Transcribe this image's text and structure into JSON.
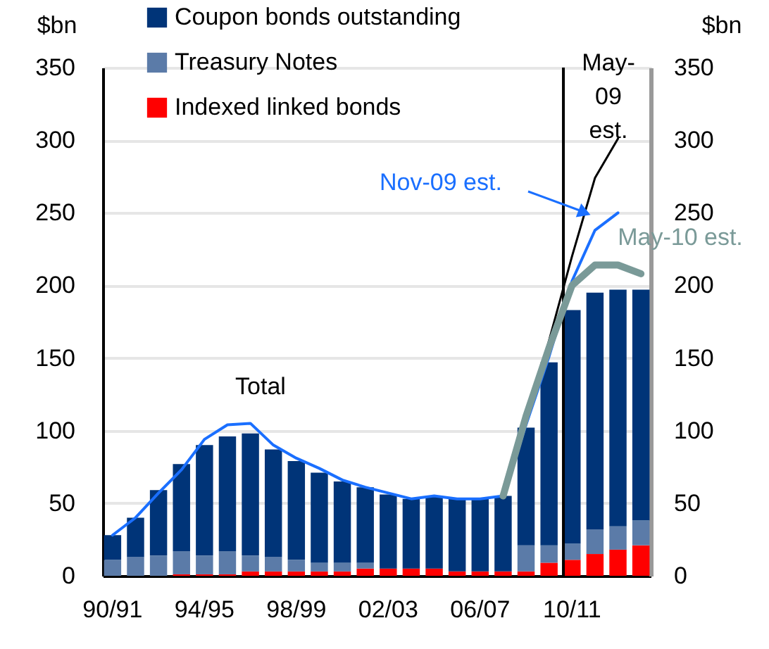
{
  "chart_data": {
    "type": "bar",
    "stacked": true,
    "categories": [
      "90/91",
      null,
      null,
      null,
      "94/95",
      null,
      null,
      null,
      "98/99",
      null,
      null,
      null,
      "02/03",
      null,
      null,
      null,
      "06/07",
      null,
      null,
      null,
      "10/11",
      null,
      null,
      null
    ],
    "series": [
      {
        "name": "Indexed linked bonds",
        "color": "#ff0000",
        "values": [
          0,
          0,
          0,
          1,
          1,
          1,
          3,
          3,
          3,
          3,
          3,
          5,
          5,
          5,
          5,
          3,
          3,
          3,
          3,
          9,
          11,
          15,
          18,
          21
        ]
      },
      {
        "name": "Treasury Notes",
        "color": "#5b7ba8",
        "values": [
          11,
          13,
          14,
          16,
          13,
          16,
          11,
          10,
          8,
          6,
          6,
          4,
          0,
          0,
          0,
          0,
          0,
          0,
          18,
          12,
          11,
          17,
          16,
          17
        ]
      },
      {
        "name": "Coupon bonds outstanding",
        "color": "#003478",
        "values": [
          17,
          27,
          45,
          60,
          76,
          79,
          84,
          74,
          68,
          62,
          56,
          52,
          51,
          48,
          50,
          50,
          50,
          52,
          81,
          126,
          161,
          163,
          163,
          159
        ]
      },
      {
        "name": "Nov-09 est.",
        "type": "line",
        "color": "#1a6fff",
        "values": [
          28,
          40,
          57,
          73,
          94,
          104,
          105,
          90,
          81,
          74,
          66,
          61,
          57,
          53,
          55,
          53,
          53,
          55,
          104,
          151,
          203,
          238,
          250,
          null
        ]
      },
      {
        "name": "May-09 est.",
        "type": "line",
        "color": "#000000",
        "values": [
          null,
          null,
          null,
          null,
          null,
          null,
          null,
          null,
          null,
          null,
          null,
          null,
          null,
          null,
          null,
          null,
          null,
          55,
          null,
          162,
          220,
          274,
          301,
          null
        ]
      },
      {
        "name": "May-10 est.",
        "type": "line",
        "color": "#7a9a98",
        "values": [
          null,
          null,
          null,
          null,
          null,
          null,
          null,
          null,
          null,
          null,
          null,
          null,
          null,
          null,
          null,
          null,
          null,
          55,
          110,
          157,
          200,
          214,
          214,
          208
        ]
      }
    ],
    "ylabel": "$bn",
    "y2label": "$bn",
    "ylim": [
      0,
      350
    ],
    "yticks": [
      0,
      50,
      100,
      150,
      200,
      250,
      300,
      350
    ],
    "y2lim": [
      0,
      350
    ],
    "y2ticks": [
      0,
      50,
      100,
      150,
      200,
      250,
      300,
      350
    ],
    "ref_lines": [
      {
        "axis": "x",
        "value": "10/11",
        "color": "#000000"
      }
    ],
    "annotations": [
      "Total"
    ],
    "grid": "y",
    "legend": "top left"
  }
}
